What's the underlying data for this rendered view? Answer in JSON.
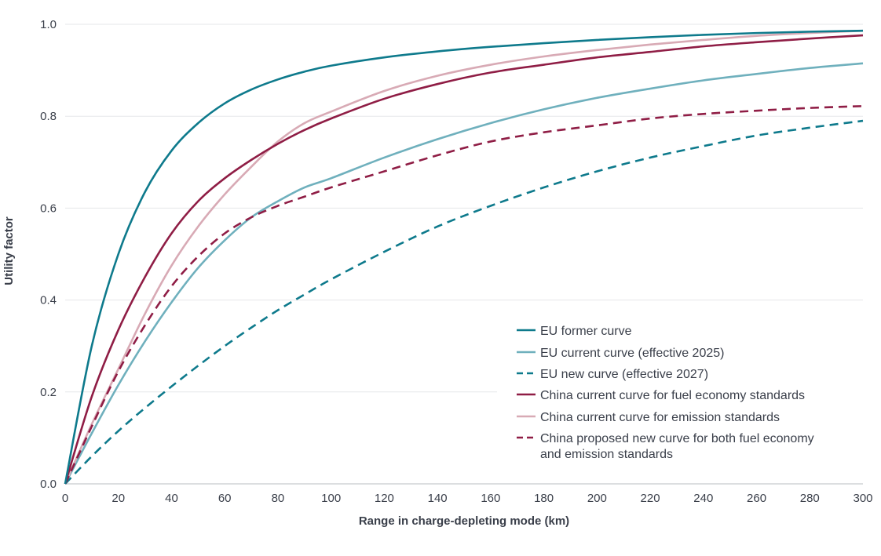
{
  "chart_data": {
    "type": "line",
    "xlabel": "Range in charge-depleting mode (km)",
    "ylabel": "Utility factor",
    "xlim": [
      0,
      300
    ],
    "ylim": [
      0,
      1.0
    ],
    "xticks": [
      "0",
      "20",
      "40",
      "60",
      "80",
      "100",
      "120",
      "140",
      "160",
      "180",
      "200",
      "220",
      "240",
      "260",
      "280",
      "300"
    ],
    "yticks": [
      "0.0",
      "0.2",
      "0.4",
      "0.6",
      "0.8",
      "1.0"
    ],
    "grid": "horizontal",
    "legend_position": "bottom-right",
    "x": [
      0,
      10,
      20,
      30,
      40,
      50,
      60,
      70,
      80,
      90,
      100,
      120,
      140,
      160,
      180,
      200,
      220,
      240,
      260,
      280,
      300
    ],
    "series": [
      {
        "name": "EU former curve",
        "color": "#0e7a8c",
        "dash": "solid",
        "values": [
          0,
          0.3,
          0.5,
          0.635,
          0.725,
          0.785,
          0.828,
          0.858,
          0.88,
          0.897,
          0.91,
          0.928,
          0.941,
          0.951,
          0.959,
          0.966,
          0.972,
          0.977,
          0.981,
          0.984,
          0.986
        ]
      },
      {
        "name": "EU current curve (effective 2025)",
        "color": "#6fb0bd",
        "dash": "solid",
        "values": [
          0,
          0.11,
          0.215,
          0.31,
          0.395,
          0.47,
          0.53,
          0.58,
          0.615,
          0.645,
          0.665,
          0.71,
          0.75,
          0.785,
          0.815,
          0.84,
          0.86,
          0.878,
          0.892,
          0.905,
          0.915
        ]
      },
      {
        "name": "EU new curve (effective 2027)",
        "color": "#0e7a8c",
        "dash": "dashed",
        "values": [
          0,
          0.06,
          0.115,
          0.165,
          0.212,
          0.257,
          0.3,
          0.34,
          0.378,
          0.412,
          0.445,
          0.505,
          0.56,
          0.605,
          0.645,
          0.68,
          0.71,
          0.735,
          0.758,
          0.775,
          0.79
        ]
      },
      {
        "name": "China current curve for fuel economy standards",
        "color": "#8f1d45",
        "dash": "solid",
        "values": [
          0,
          0.19,
          0.335,
          0.45,
          0.545,
          0.615,
          0.665,
          0.705,
          0.74,
          0.77,
          0.795,
          0.838,
          0.87,
          0.895,
          0.912,
          0.928,
          0.94,
          0.952,
          0.961,
          0.969,
          0.976
        ]
      },
      {
        "name": "China current curve for emission standards",
        "color": "#d8aab5",
        "dash": "solid",
        "values": [
          0,
          0.13,
          0.25,
          0.37,
          0.475,
          0.56,
          0.63,
          0.69,
          0.745,
          0.785,
          0.81,
          0.855,
          0.888,
          0.912,
          0.93,
          0.944,
          0.956,
          0.966,
          0.975,
          0.981,
          0.986
        ]
      },
      {
        "name": "China proposed new curve for both fuel economy and emission standards",
        "color": "#8f1d45",
        "dash": "dashed",
        "values": [
          0,
          0.125,
          0.245,
          0.345,
          0.43,
          0.495,
          0.545,
          0.58,
          0.605,
          0.625,
          0.645,
          0.68,
          0.715,
          0.745,
          0.765,
          0.78,
          0.795,
          0.805,
          0.812,
          0.818,
          0.822
        ]
      }
    ],
    "legend": [
      "EU former curve",
      "EU current curve (effective 2025)",
      "EU new curve (effective 2027)",
      "China current curve for fuel economy standards",
      "China current curve for emission standards",
      "China proposed new curve for both fuel economy",
      "and emission standards"
    ]
  }
}
